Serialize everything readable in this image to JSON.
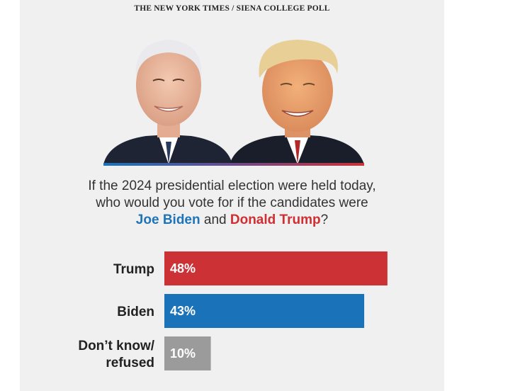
{
  "header": {
    "source": "THE NEW YORK TIMES / SIENA COLLEGE POLL"
  },
  "question": {
    "line1": "If the 2024 presidential election were held today,",
    "line2": "who would you vote for if the candidates were",
    "biden": "Joe Biden",
    "connector": " and ",
    "trump": "Donald Trump",
    "end": "?"
  },
  "colors": {
    "trump": "#cc3135",
    "biden": "#1a73b8",
    "other": "#9b9b9b",
    "panel": "#f0f0f0"
  },
  "chart_data": {
    "type": "bar",
    "orientation": "horizontal",
    "categories": [
      "Trump",
      "Biden",
      "Don’t know/ refused"
    ],
    "category_lines": [
      [
        "Trump"
      ],
      [
        "Biden"
      ],
      [
        "Don’t know/",
        "refused"
      ]
    ],
    "values": [
      48,
      43,
      10
    ],
    "value_labels": [
      "48%",
      "43%",
      "10%"
    ],
    "bar_colors": [
      "#cc3135",
      "#1a73b8",
      "#9b9b9b"
    ],
    "xlim": [
      0,
      100
    ],
    "grid": false,
    "legend": "none"
  }
}
